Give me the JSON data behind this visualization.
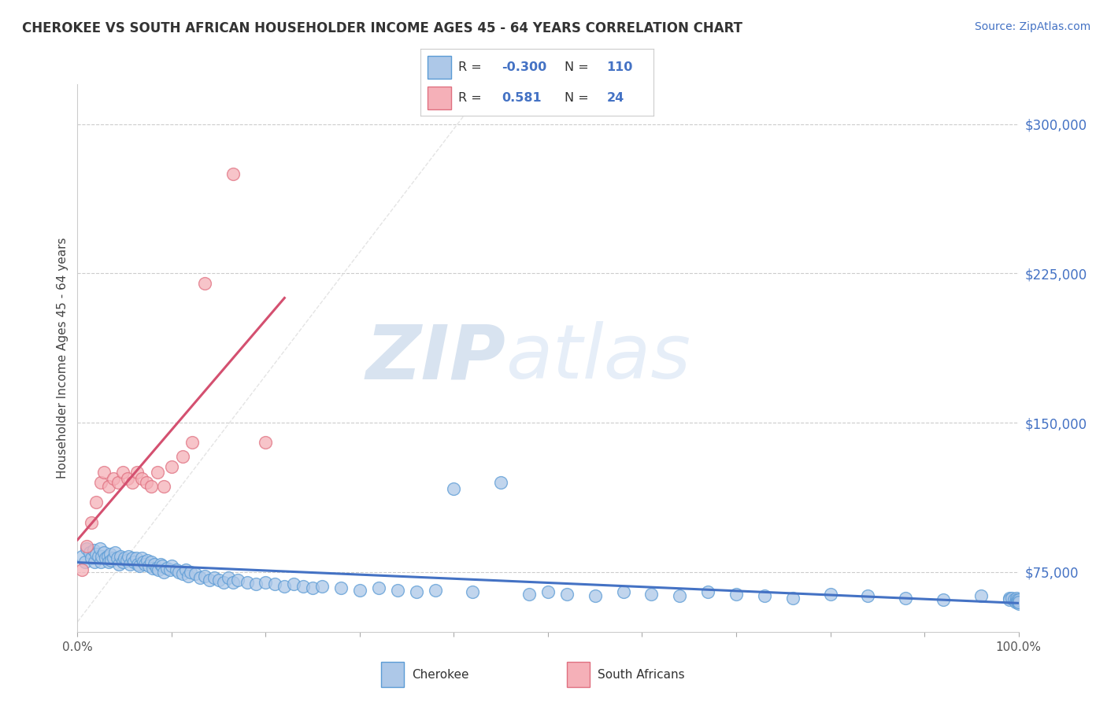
{
  "title": "CHEROKEE VS SOUTH AFRICAN HOUSEHOLDER INCOME AGES 45 - 64 YEARS CORRELATION CHART",
  "source": "Source: ZipAtlas.com",
  "ylabel": "Householder Income Ages 45 - 64 years",
  "xlim": [
    0.0,
    1.0
  ],
  "ylim": [
    45000,
    320000
  ],
  "yticks": [
    75000,
    150000,
    225000,
    300000
  ],
  "ytick_labels": [
    "$75,000",
    "$150,000",
    "$225,000",
    "$300,000"
  ],
  "cherokee_dot_face": "#adc8e8",
  "cherokee_dot_edge": "#5b9bd5",
  "sa_dot_face": "#f5b0b8",
  "sa_dot_edge": "#e07080",
  "cherokee_line_color": "#4472c4",
  "sa_line_color": "#d45070",
  "watermark_color": "#c8d8ee",
  "bg_color": "#ffffff",
  "grid_color": "#cccccc",
  "diag_color": "#dddddd",
  "right_tick_color": "#4472c4",
  "legend_label_color": "#4472c4",
  "cherokee_x": [
    0.005,
    0.008,
    0.01,
    0.013,
    0.015,
    0.017,
    0.018,
    0.02,
    0.022,
    0.024,
    0.025,
    0.026,
    0.028,
    0.03,
    0.032,
    0.033,
    0.035,
    0.036,
    0.038,
    0.04,
    0.042,
    0.044,
    0.046,
    0.048,
    0.05,
    0.052,
    0.054,
    0.056,
    0.058,
    0.06,
    0.062,
    0.064,
    0.066,
    0.068,
    0.07,
    0.072,
    0.074,
    0.076,
    0.078,
    0.08,
    0.082,
    0.084,
    0.086,
    0.088,
    0.09,
    0.092,
    0.095,
    0.098,
    0.1,
    0.105,
    0.108,
    0.112,
    0.115,
    0.118,
    0.12,
    0.125,
    0.13,
    0.135,
    0.14,
    0.145,
    0.15,
    0.155,
    0.16,
    0.165,
    0.17,
    0.18,
    0.19,
    0.2,
    0.21,
    0.22,
    0.23,
    0.24,
    0.25,
    0.26,
    0.28,
    0.3,
    0.32,
    0.34,
    0.36,
    0.38,
    0.4,
    0.42,
    0.45,
    0.48,
    0.5,
    0.52,
    0.55,
    0.58,
    0.61,
    0.64,
    0.67,
    0.7,
    0.73,
    0.76,
    0.8,
    0.84,
    0.88,
    0.92,
    0.96,
    0.99,
    0.99,
    0.993,
    0.995,
    0.997,
    0.998,
    0.999,
    0.999,
    1.0,
    1.0,
    1.0
  ],
  "cherokee_y": [
    83000,
    80000,
    87000,
    85000,
    82000,
    86000,
    80000,
    84000,
    83000,
    87000,
    80000,
    83000,
    85000,
    82000,
    83000,
    80000,
    84000,
    81000,
    82000,
    85000,
    82000,
    79000,
    83000,
    80000,
    82000,
    81000,
    83000,
    79000,
    82000,
    80000,
    82000,
    79000,
    78000,
    82000,
    80000,
    79000,
    81000,
    78000,
    80000,
    77000,
    79000,
    77000,
    76000,
    79000,
    78000,
    75000,
    77000,
    76000,
    78000,
    76000,
    75000,
    74000,
    76000,
    73000,
    75000,
    74000,
    72000,
    73000,
    71000,
    72000,
    71000,
    70000,
    72000,
    70000,
    71000,
    70000,
    69000,
    70000,
    69000,
    68000,
    69000,
    68000,
    67000,
    68000,
    67000,
    66000,
    67000,
    66000,
    65000,
    66000,
    117000,
    65000,
    120000,
    64000,
    65000,
    64000,
    63000,
    65000,
    64000,
    63000,
    65000,
    64000,
    63000,
    62000,
    64000,
    63000,
    62000,
    61000,
    63000,
    62000,
    61000,
    62000,
    61000,
    60000,
    62000,
    61000,
    60000,
    59000,
    61000,
    60000
  ],
  "sa_x": [
    0.005,
    0.01,
    0.015,
    0.02,
    0.025,
    0.028,
    0.033,
    0.038,
    0.043,
    0.048,
    0.053,
    0.058,
    0.063,
    0.068,
    0.073,
    0.078,
    0.085,
    0.092,
    0.1,
    0.112,
    0.122,
    0.135,
    0.165,
    0.2
  ],
  "sa_y": [
    76000,
    88000,
    100000,
    110000,
    120000,
    125000,
    118000,
    122000,
    120000,
    125000,
    122000,
    120000,
    125000,
    122000,
    120000,
    118000,
    125000,
    118000,
    128000,
    133000,
    140000,
    220000,
    275000,
    140000
  ]
}
